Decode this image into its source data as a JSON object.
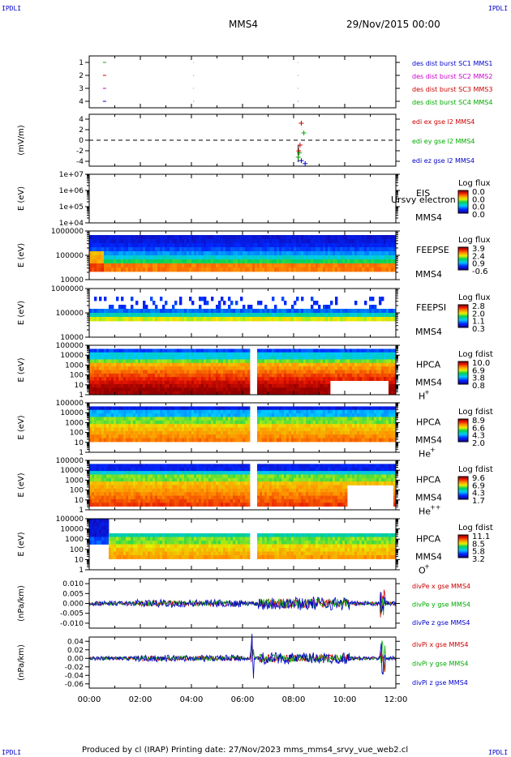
{
  "page": {
    "corner_tl": "IPDLI",
    "corner_tr": "IPDLI",
    "corner_bl": "IPDLI",
    "corner_br": "IPDLI",
    "spacecraft": "MMS4",
    "date": "29/Nov/2015 00:00",
    "footer": "Produced by cl (IRAP)   Printing date: 27/Nov/2023   mms_mms4_srvy_vue_web2.cl"
  },
  "chart_data": [
    {
      "type": "scatter",
      "name": "burst-flags",
      "yticks": [
        "1",
        "2",
        "3",
        "4"
      ],
      "ylim": [
        0.5,
        4.5
      ],
      "legend": [
        {
          "label": "des dist burst SC1 MMS1",
          "color": "#0000cc"
        },
        {
          "label": "des dist burst SC2 MMS2",
          "color": "#cc00cc"
        },
        {
          "label": "des dist burst SC3 MMS3",
          "color": "#cc0000"
        },
        {
          "label": "des dist burst SC4 MMS4",
          "color": "#00aa00"
        }
      ]
    },
    {
      "type": "line",
      "name": "edi-efield",
      "ylabel": "(mV/m)",
      "yticks": [
        "4",
        "2",
        "0",
        "-2",
        "-4"
      ],
      "ylim": [
        -5,
        5
      ],
      "legend": [
        {
          "label": "edi ex gse l2 MMS4",
          "color": "#cc0000"
        },
        {
          "label": "edi ey gse l2 MMS4",
          "color": "#00aa00"
        },
        {
          "label": "edi ez gse l2 MMS4",
          "color": "#0000cc"
        }
      ]
    },
    {
      "type": "heatmap",
      "name": "eis",
      "ylabel": "E (eV)",
      "yticks": [
        "1e+07",
        "1e+06",
        "1e+05",
        "1e+04"
      ],
      "instrument": "EIS",
      "overlay_text": "Ursvy electron to",
      "spacecraft": "MMS4",
      "cbar_title": "Log flux",
      "cbar_ticks": [
        "0.0",
        "0.0",
        "0.0",
        "0.0"
      ]
    },
    {
      "type": "heatmap",
      "name": "feeps-electron",
      "ylabel": "E (eV)",
      "yticks": [
        "1000000",
        "100000",
        "10000"
      ],
      "instrument": "FEEPSE",
      "spacecraft": "MMS4",
      "cbar_title": "Log flux",
      "cbar_ticks": [
        "3.9",
        "2.4",
        "0.9",
        "-0.6"
      ]
    },
    {
      "type": "heatmap",
      "name": "feeps-ion",
      "ylabel": "E (eV)",
      "yticks": [
        "1000000",
        "100000",
        "10000"
      ],
      "instrument": "FEEPSI",
      "spacecraft": "MMS4",
      "cbar_title": "Log flux",
      "cbar_ticks": [
        "2.8",
        "2.0",
        "1.1",
        "0.3"
      ]
    },
    {
      "type": "heatmap",
      "name": "hpca-h",
      "ylabel": "E (eV)",
      "yticks": [
        "100000",
        "10000",
        "1000",
        "100",
        "10",
        "1"
      ],
      "instrument": "HPCA",
      "spacecraft": "MMS4",
      "species": "H",
      "charge": "+",
      "cbar_title": "Log fdist",
      "cbar_ticks": [
        "10.0",
        "6.9",
        "3.8",
        "0.8"
      ]
    },
    {
      "type": "heatmap",
      "name": "hpca-he",
      "ylabel": "E (eV)",
      "yticks": [
        "100000",
        "10000",
        "1000",
        "100",
        "10",
        "1"
      ],
      "instrument": "HPCA",
      "spacecraft": "MMS4",
      "species": "He",
      "charge": "+",
      "cbar_title": "Log fdist",
      "cbar_ticks": [
        "8.9",
        "6.6",
        "4.3",
        "2.0"
      ]
    },
    {
      "type": "heatmap",
      "name": "hpca-hepp",
      "ylabel": "E (eV)",
      "yticks": [
        "100000",
        "10000",
        "1000",
        "100",
        "10",
        "1"
      ],
      "instrument": "HPCA",
      "spacecraft": "MMS4",
      "species": "He",
      "charge": "++",
      "cbar_title": "Log fdist",
      "cbar_ticks": [
        "9.6",
        "6.9",
        "4.3",
        "1.7"
      ]
    },
    {
      "type": "heatmap",
      "name": "hpca-o",
      "ylabel": "E (eV)",
      "yticks": [
        "100000",
        "10000",
        "1000",
        "100",
        "10",
        "1"
      ],
      "instrument": "HPCA",
      "spacecraft": "MMS4",
      "species": "O",
      "charge": "+",
      "cbar_title": "Log fdist",
      "cbar_ticks": [
        "11.1",
        "8.5",
        "5.8",
        "3.2"
      ]
    },
    {
      "type": "line",
      "name": "dive-pe",
      "ylabel": "(nPa/km)",
      "yticks": [
        "0.010",
        "0.005",
        "0.000",
        "-0.005",
        "-0.010"
      ],
      "ylim": [
        -0.0125,
        0.0125
      ],
      "legend": [
        {
          "label": "divPe x gse MMS4",
          "color": "#cc0000"
        },
        {
          "label": "divPe y gse MMS4",
          "color": "#00aa00"
        },
        {
          "label": "divPe z gse MMS4",
          "color": "#0000cc"
        }
      ]
    },
    {
      "type": "line",
      "name": "dive-pi",
      "ylabel": "(nPa/km)",
      "yticks": [
        "0.04",
        "0.02",
        "0.00",
        "-0.02",
        "-0.04",
        "-0.06"
      ],
      "ylim": [
        -0.07,
        0.05
      ],
      "legend": [
        {
          "label": "divPi x gse MMS4",
          "color": "#cc0000"
        },
        {
          "label": "divPi y gse MMS4",
          "color": "#00aa00"
        },
        {
          "label": "divPi z gse MMS4",
          "color": "#0000cc"
        }
      ]
    }
  ],
  "time_axis": {
    "ticks": [
      "00:00",
      "02:00",
      "04:00",
      "06:00",
      "08:00",
      "10:00",
      "12:00"
    ],
    "xlim_hours": [
      0,
      12
    ]
  }
}
